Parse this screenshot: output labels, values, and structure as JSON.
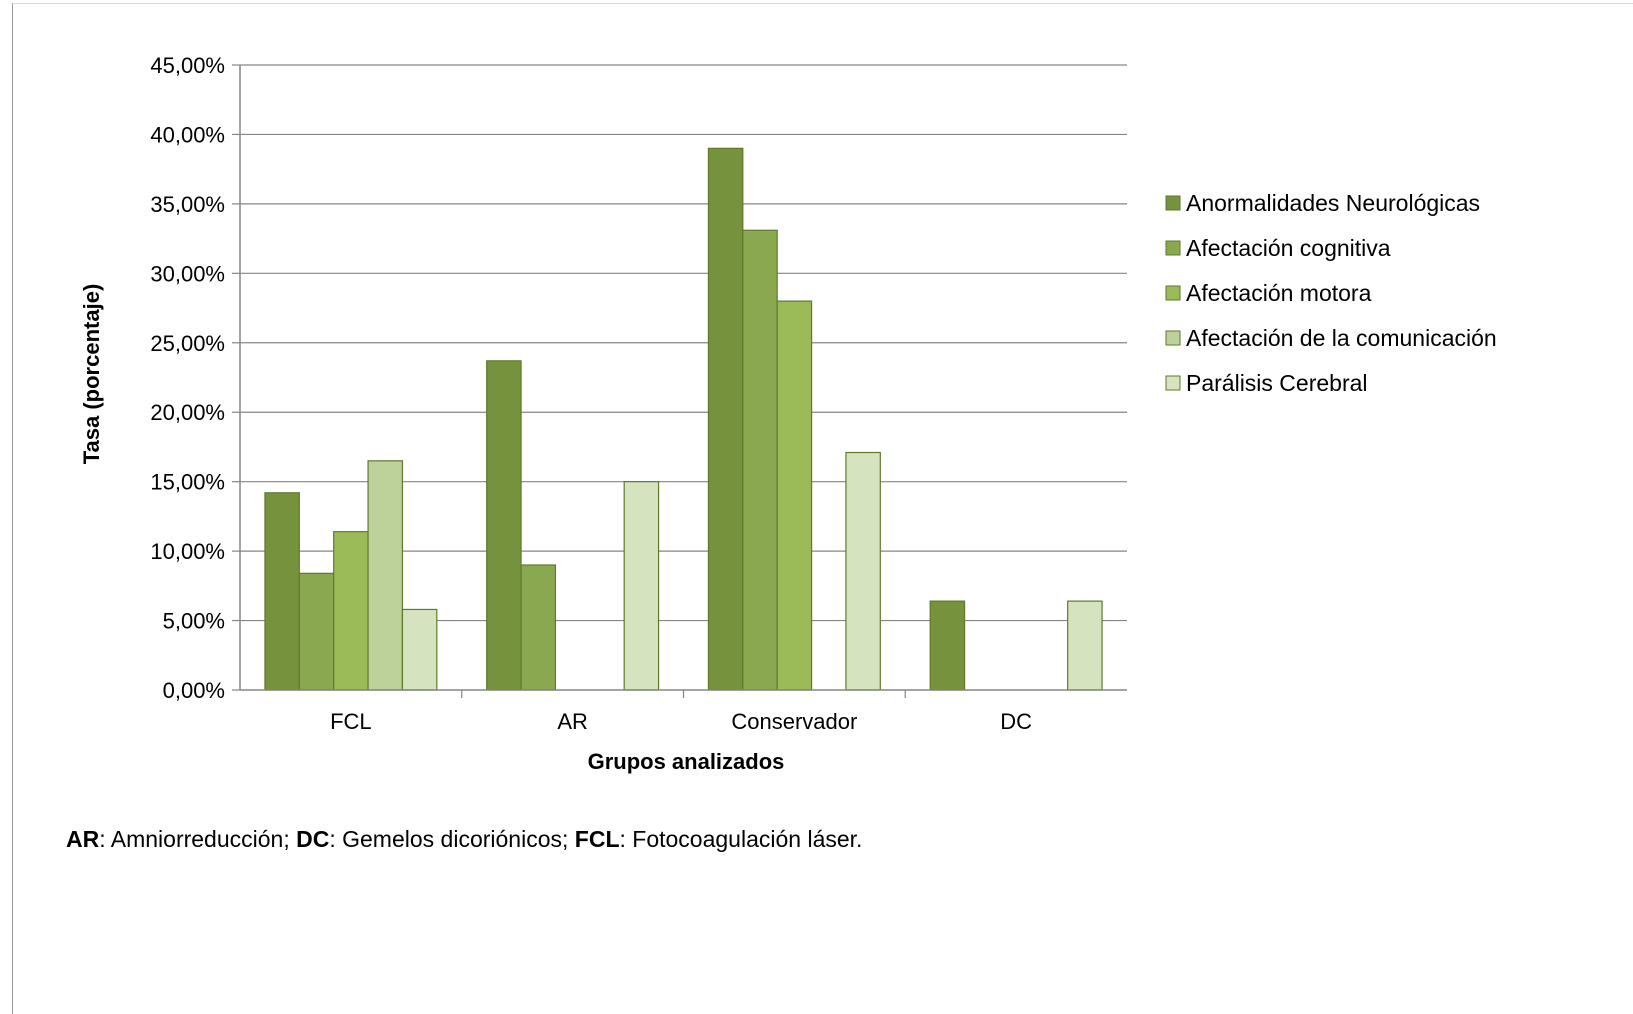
{
  "chart_data": {
    "type": "bar",
    "xlabel": "Grupos analizados",
    "ylabel": "Tasa (porcentaje)",
    "ylim": [
      0,
      45
    ],
    "ytick_step": 5,
    "ytick_labels": [
      "0,00%",
      "5,00%",
      "10,00%",
      "15,00%",
      "20,00%",
      "25,00%",
      "30,00%",
      "35,00%",
      "40,00%",
      "45,00%"
    ],
    "grid": true,
    "legend_position": "right",
    "categories": [
      "FCL",
      "AR",
      "Conservador",
      "DC"
    ],
    "series": [
      {
        "name": "Anormalidades Neurológicas",
        "color": "#76923c",
        "values": [
          14.2,
          23.7,
          39.0,
          6.4
        ]
      },
      {
        "name": "Afectación cognitiva",
        "color": "#8aa84f",
        "values": [
          8.4,
          9.0,
          33.1,
          0
        ]
      },
      {
        "name": "Afectación motora",
        "color": "#9bbb59",
        "values": [
          11.4,
          0,
          28.0,
          0
        ]
      },
      {
        "name": "Afectación de la comunicación",
        "color": "#bdd19a",
        "values": [
          16.5,
          0,
          0,
          0
        ]
      },
      {
        "name": "Parálisis Cerebral",
        "color": "#d6e3bf",
        "values": [
          5.8,
          15.0,
          17.1,
          6.4
        ]
      }
    ]
  },
  "footnote": {
    "parts": [
      {
        "bold": true,
        "text": "AR"
      },
      {
        "bold": false,
        "text": ":  Amniorreducción; "
      },
      {
        "bold": true,
        "text": "DC"
      },
      {
        "bold": false,
        "text": ": Gemelos dicoriónicos;  "
      },
      {
        "bold": true,
        "text": "FCL"
      },
      {
        "bold": false,
        "text": ": Fotocoagulación láser."
      }
    ]
  }
}
